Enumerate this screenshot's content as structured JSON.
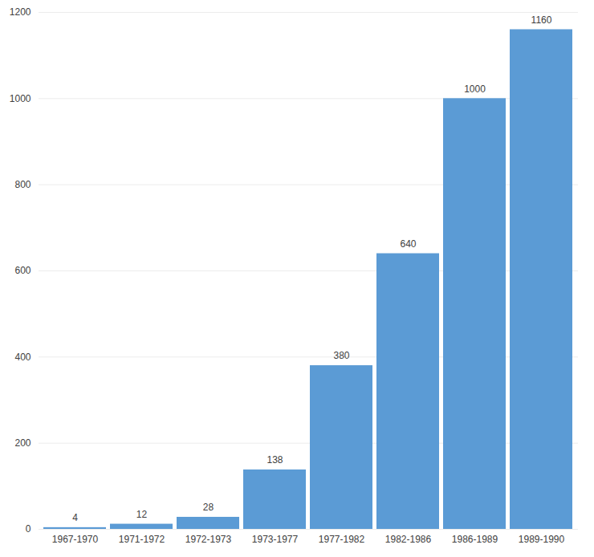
{
  "chart_data": {
    "type": "bar",
    "categories": [
      "1967-1970",
      "1971-1972",
      "1972-1973",
      "1973-1977",
      "1977-1982",
      "1982-1986",
      "1986-1989",
      "1989-1990"
    ],
    "values": [
      4,
      12,
      28,
      138,
      380,
      640,
      1000,
      1160
    ],
    "color": "#5b9bd5",
    "ylim": [
      0,
      1200
    ],
    "yticks": [
      0,
      200,
      400,
      600,
      800,
      1000,
      1200
    ],
    "grid": true,
    "data_labels": true
  }
}
